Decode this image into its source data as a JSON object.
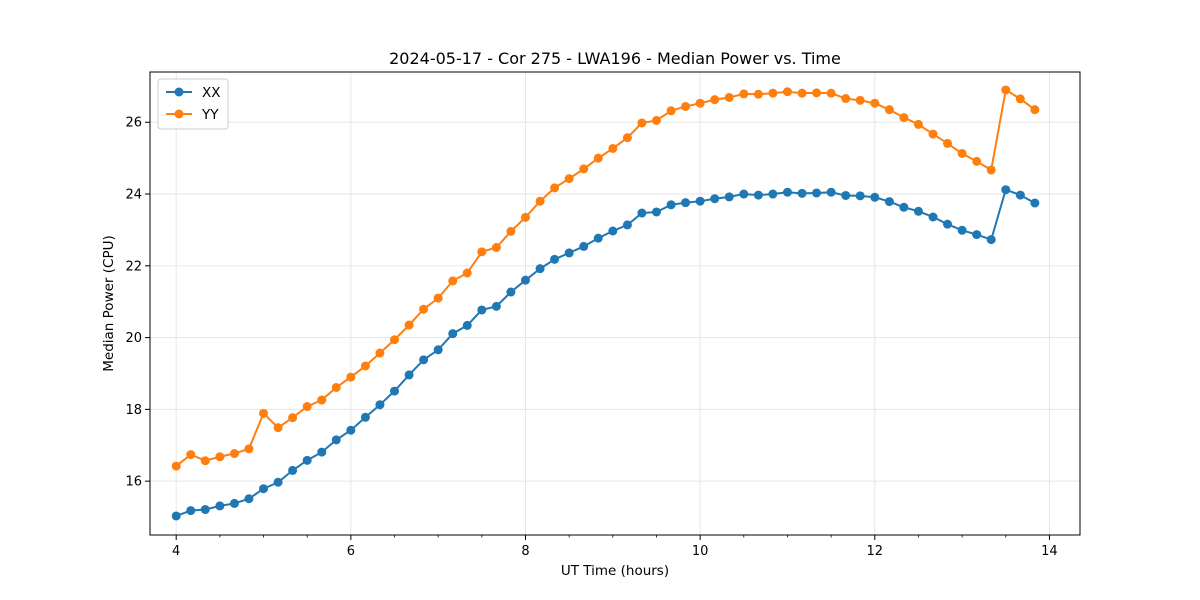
{
  "chart_data": {
    "type": "line",
    "title": "2024-05-17 - Cor 275 - LWA196 - Median Power vs. Time",
    "xlabel": "UT Time (hours)",
    "ylabel": "Median Power (CPU)",
    "xlim": [
      3.7,
      14.35
    ],
    "ylim": [
      14.5,
      27.4
    ],
    "xticks": [
      4,
      6,
      8,
      10,
      12,
      14
    ],
    "yticks": [
      16,
      18,
      20,
      22,
      24,
      26
    ],
    "grid": true,
    "legend_position": "top-left",
    "x": [
      4.0,
      4.167,
      4.333,
      4.5,
      4.667,
      4.833,
      5.0,
      5.167,
      5.333,
      5.5,
      5.667,
      5.833,
      6.0,
      6.167,
      6.333,
      6.5,
      6.667,
      6.833,
      7.0,
      7.167,
      7.333,
      7.5,
      7.667,
      7.833,
      8.0,
      8.167,
      8.333,
      8.5,
      8.667,
      8.833,
      9.0,
      9.167,
      9.333,
      9.5,
      9.667,
      9.833,
      10.0,
      10.167,
      10.333,
      10.5,
      10.667,
      10.833,
      11.0,
      11.167,
      11.333,
      11.5,
      11.667,
      11.833,
      12.0,
      12.167,
      12.333,
      12.5,
      12.667,
      12.833,
      13.0,
      13.167,
      13.333,
      13.5,
      13.667,
      13.833
    ],
    "series": [
      {
        "name": "XX",
        "color": "#1f77b4",
        "values": [
          15.03,
          15.18,
          15.21,
          15.31,
          15.38,
          15.51,
          15.79,
          15.97,
          16.3,
          16.58,
          16.81,
          17.15,
          17.42,
          17.78,
          18.13,
          18.51,
          18.96,
          19.38,
          19.66,
          20.11,
          20.34,
          20.77,
          20.87,
          21.27,
          21.6,
          21.92,
          22.18,
          22.36,
          22.54,
          22.77,
          22.97,
          23.14,
          23.47,
          23.5,
          23.7,
          23.76,
          23.8,
          23.87,
          23.92,
          24.0,
          23.97,
          24.0,
          24.05,
          24.02,
          24.03,
          24.05,
          23.96,
          23.95,
          23.91,
          23.79,
          23.63,
          23.52,
          23.36,
          23.16,
          22.99,
          22.87,
          22.73,
          24.12,
          23.97,
          23.75
        ]
      },
      {
        "name": "YY",
        "color": "#ff7f0e",
        "values": [
          16.42,
          16.74,
          16.57,
          16.68,
          16.77,
          16.9,
          17.89,
          17.49,
          17.77,
          18.08,
          18.26,
          18.61,
          18.9,
          19.21,
          19.57,
          19.94,
          20.35,
          20.79,
          21.1,
          21.58,
          21.8,
          22.39,
          22.51,
          22.96,
          23.35,
          23.8,
          24.17,
          24.43,
          24.7,
          25.0,
          25.27,
          25.57,
          25.98,
          26.05,
          26.32,
          26.44,
          26.53,
          26.63,
          26.69,
          26.79,
          26.78,
          26.81,
          26.85,
          26.81,
          26.82,
          26.81,
          26.66,
          26.61,
          26.53,
          26.35,
          26.13,
          25.94,
          25.67,
          25.41,
          25.13,
          24.91,
          24.67,
          26.9,
          26.65,
          26.35
        ]
      }
    ]
  }
}
